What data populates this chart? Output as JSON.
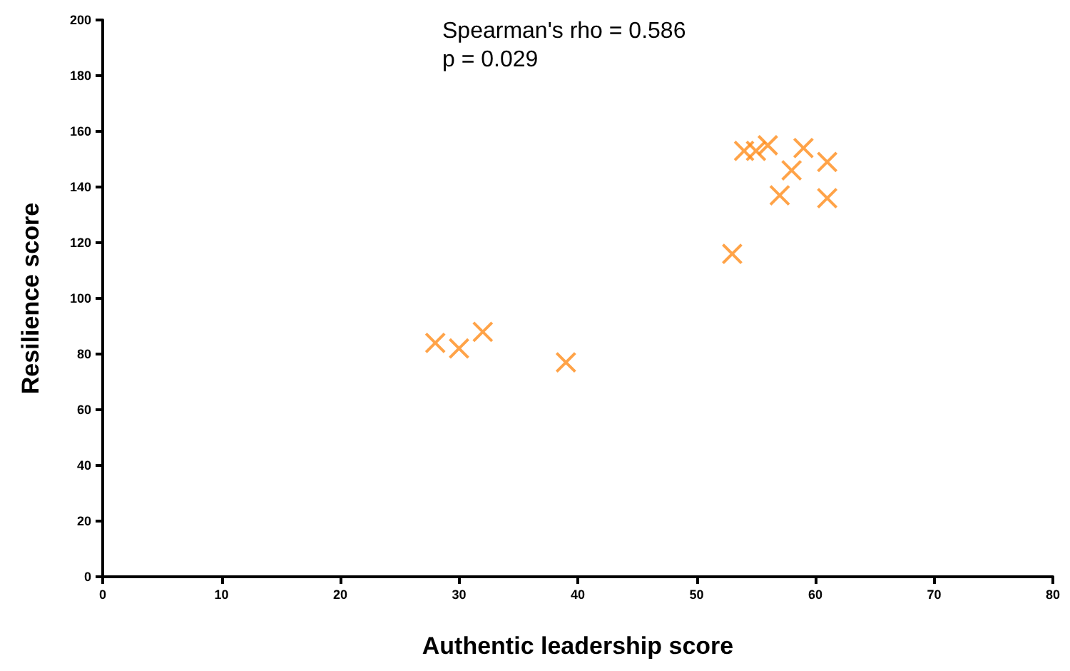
{
  "chart_data": {
    "type": "scatter",
    "xlabel": "Authentic leadership score",
    "ylabel": "Resilience score",
    "annotations": [
      "Spearman's rho = 0.586",
      "p = 0.029"
    ],
    "x": [
      28,
      30,
      32,
      39,
      53,
      54,
      55,
      56,
      59,
      61,
      58,
      57,
      61
    ],
    "values": [
      84,
      82,
      88,
      77,
      116,
      153,
      153,
      155,
      154,
      149,
      146,
      137,
      136
    ],
    "color": "#ff8c1a",
    "marker": "cross",
    "grid": false,
    "xlim": [
      0,
      80
    ],
    "xticks": [
      0,
      10,
      20,
      30,
      40,
      50,
      60,
      70,
      80
    ],
    "ylim": [
      0,
      200
    ],
    "yticks": [
      0,
      20,
      40,
      60,
      80,
      100,
      120,
      140,
      160,
      180,
      200
    ]
  }
}
